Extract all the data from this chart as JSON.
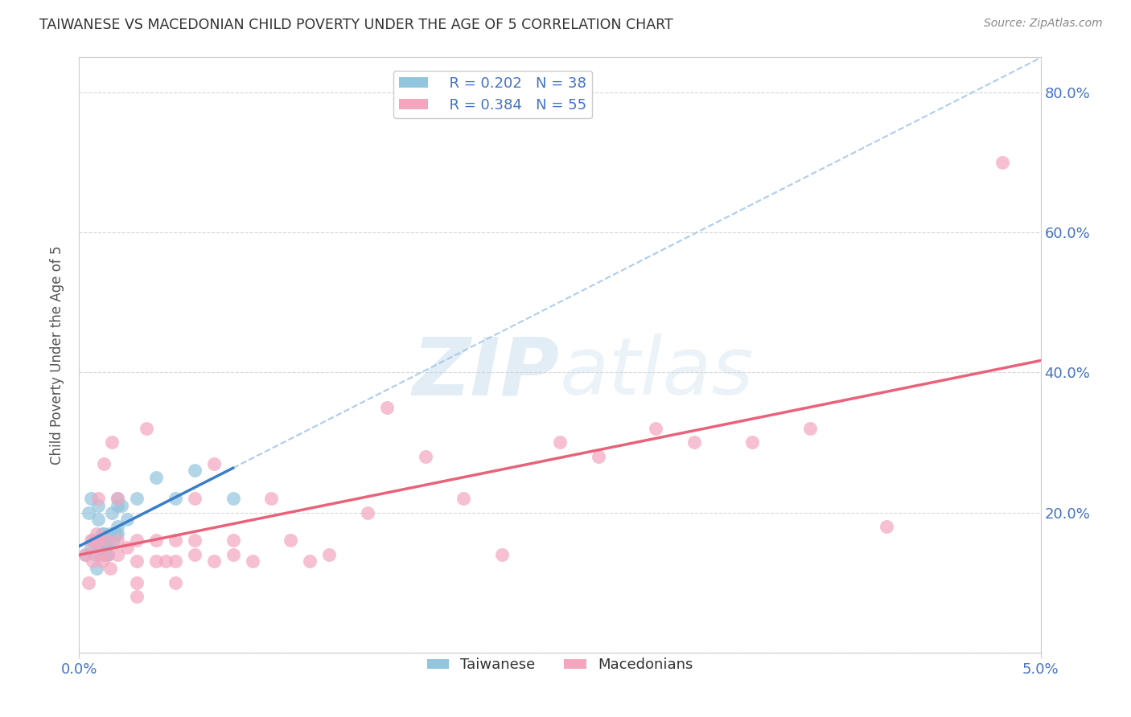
{
  "title": "TAIWANESE VS MACEDONIAN CHILD POVERTY UNDER THE AGE OF 5 CORRELATION CHART",
  "source": "Source: ZipAtlas.com",
  "ylabel": "Child Poverty Under the Age of 5",
  "xlim": [
    0.0,
    0.05
  ],
  "ylim": [
    0.0,
    0.85
  ],
  "blue_color": "#92c5de",
  "pink_color": "#f4a6bf",
  "blue_line_color": "#3a7dc9",
  "pink_line_color": "#e8637a",
  "blue_dash_color": "#a0c4e8",
  "R_blue": 0.202,
  "N_blue": 38,
  "R_pink": 0.384,
  "N_pink": 55,
  "legend_label_blue": "Taiwanese",
  "legend_label_pink": "Macedonians",
  "watermark_zip": "ZIP",
  "watermark_atlas": "atlas",
  "background_color": "#ffffff",
  "grid_color": "#cccccc",
  "tick_label_color": "#4472c4",
  "title_color": "#333333",
  "taiwanese_x": [
    0.0003,
    0.0005,
    0.0006,
    0.0006,
    0.0007,
    0.0008,
    0.0008,
    0.0009,
    0.001,
    0.001,
    0.001,
    0.001,
    0.0011,
    0.0012,
    0.0012,
    0.0013,
    0.0013,
    0.0013,
    0.0014,
    0.0014,
    0.0014,
    0.0015,
    0.0015,
    0.0016,
    0.0017,
    0.0018,
    0.0019,
    0.002,
    0.002,
    0.002,
    0.002,
    0.0022,
    0.0025,
    0.003,
    0.004,
    0.005,
    0.006,
    0.008
  ],
  "taiwanese_y": [
    0.14,
    0.2,
    0.15,
    0.22,
    0.16,
    0.14,
    0.16,
    0.12,
    0.15,
    0.16,
    0.19,
    0.21,
    0.15,
    0.14,
    0.17,
    0.15,
    0.16,
    0.17,
    0.14,
    0.15,
    0.16,
    0.14,
    0.16,
    0.17,
    0.2,
    0.16,
    0.17,
    0.17,
    0.18,
    0.21,
    0.22,
    0.21,
    0.19,
    0.22,
    0.25,
    0.22,
    0.26,
    0.22
  ],
  "macedonian_x": [
    0.0003,
    0.0005,
    0.0006,
    0.0007,
    0.0008,
    0.0009,
    0.001,
    0.001,
    0.0011,
    0.0012,
    0.0013,
    0.0014,
    0.0015,
    0.0016,
    0.0017,
    0.002,
    0.002,
    0.002,
    0.0025,
    0.003,
    0.003,
    0.003,
    0.003,
    0.0035,
    0.004,
    0.004,
    0.0045,
    0.005,
    0.005,
    0.005,
    0.006,
    0.006,
    0.006,
    0.007,
    0.007,
    0.008,
    0.008,
    0.009,
    0.01,
    0.011,
    0.012,
    0.013,
    0.015,
    0.016,
    0.018,
    0.02,
    0.022,
    0.025,
    0.027,
    0.03,
    0.032,
    0.035,
    0.038,
    0.042,
    0.048
  ],
  "macedonian_y": [
    0.14,
    0.1,
    0.16,
    0.13,
    0.15,
    0.17,
    0.16,
    0.22,
    0.14,
    0.13,
    0.27,
    0.16,
    0.14,
    0.12,
    0.3,
    0.14,
    0.16,
    0.22,
    0.15,
    0.1,
    0.16,
    0.08,
    0.13,
    0.32,
    0.13,
    0.16,
    0.13,
    0.1,
    0.16,
    0.13,
    0.14,
    0.16,
    0.22,
    0.13,
    0.27,
    0.14,
    0.16,
    0.13,
    0.22,
    0.16,
    0.13,
    0.14,
    0.2,
    0.35,
    0.28,
    0.22,
    0.14,
    0.3,
    0.28,
    0.32,
    0.3,
    0.3,
    0.32,
    0.18,
    0.7
  ]
}
